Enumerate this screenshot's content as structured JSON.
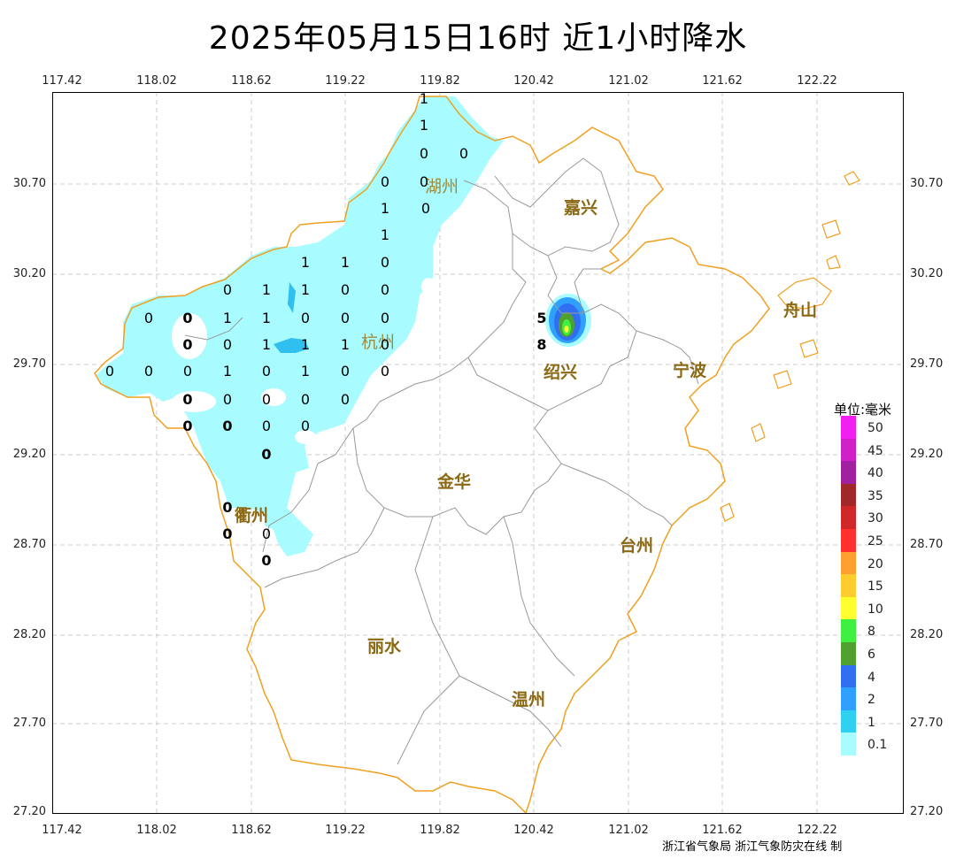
{
  "title": "2025年05月15日16时  近1小时降水",
  "x_ticks": [
    "117.42",
    "118.02",
    "118.62",
    "119.22",
    "119.82",
    "120.42",
    "121.02",
    "121.62",
    "122.22"
  ],
  "y_ticks": [
    "30.70",
    "30.20",
    "29.70",
    "29.20",
    "28.70",
    "28.20",
    "27.70",
    "27.20"
  ],
  "cities": {
    "huzhou": "湖州",
    "jiaxing": "嘉兴",
    "hangzhou": "杭州",
    "shaoxing": "绍兴",
    "ningbo": "宁波",
    "zhoushan": "舟山",
    "jinhua": "金华",
    "quzhou": "衢州",
    "taizhou": "台州",
    "lishui": "丽水",
    "wenzhou": "温州"
  },
  "station_values": {
    "v01": "1",
    "v02": "1",
    "v03": "0",
    "v04": "0",
    "v05": "0",
    "v06": "0",
    "v07": "1",
    "v08": "0",
    "v09": "1",
    "v10": "1",
    "v11": "1",
    "v12": "0",
    "v13": "0",
    "v14": "1",
    "v15": "1",
    "v16": "0",
    "v17": "0",
    "v18": "0",
    "v19": "0",
    "v20": "1",
    "v21": "1",
    "v22": "0",
    "v23": "0",
    "v24": "0",
    "v25": "0",
    "v26": "0",
    "v27": "1",
    "v28": "1",
    "v29": "1",
    "v30": "0",
    "v31": "0",
    "v32": "0",
    "v33": "0",
    "v34": "1",
    "v35": "0",
    "v36": "1",
    "v37": "0",
    "v38": "0",
    "v39": "0",
    "v40": "0",
    "v41": "0",
    "v42": "0",
    "v43": "0",
    "v44": "0",
    "v45": "0",
    "v46": "0",
    "v47": "0",
    "v48": "0",
    "v49": "0",
    "v50": "0",
    "v51": "0",
    "v52": "0",
    "v53": "5",
    "v54": "8"
  },
  "legend": {
    "title": "单位:毫米",
    "items": [
      {
        "label": "50",
        "color": "#f020f0"
      },
      {
        "label": "45",
        "color": "#d020c8"
      },
      {
        "label": "40",
        "color": "#a020a0"
      },
      {
        "label": "35",
        "color": "#a02828"
      },
      {
        "label": "30",
        "color": "#d02828"
      },
      {
        "label": "25",
        "color": "#ff3030"
      },
      {
        "label": "20",
        "color": "#ffa030"
      },
      {
        "label": "15",
        "color": "#ffcc30"
      },
      {
        "label": "10",
        "color": "#ffff30"
      },
      {
        "label": "8",
        "color": "#40f040"
      },
      {
        "label": "6",
        "color": "#50a030"
      },
      {
        "label": "4",
        "color": "#3070f0"
      },
      {
        "label": "2",
        "color": "#30a0ff"
      },
      {
        "label": "1",
        "color": "#30d0f0"
      },
      {
        "label": "0.1",
        "color": "#a8fcff"
      }
    ]
  },
  "credit": "浙江省气象局  浙江气象防灾在线 制"
}
